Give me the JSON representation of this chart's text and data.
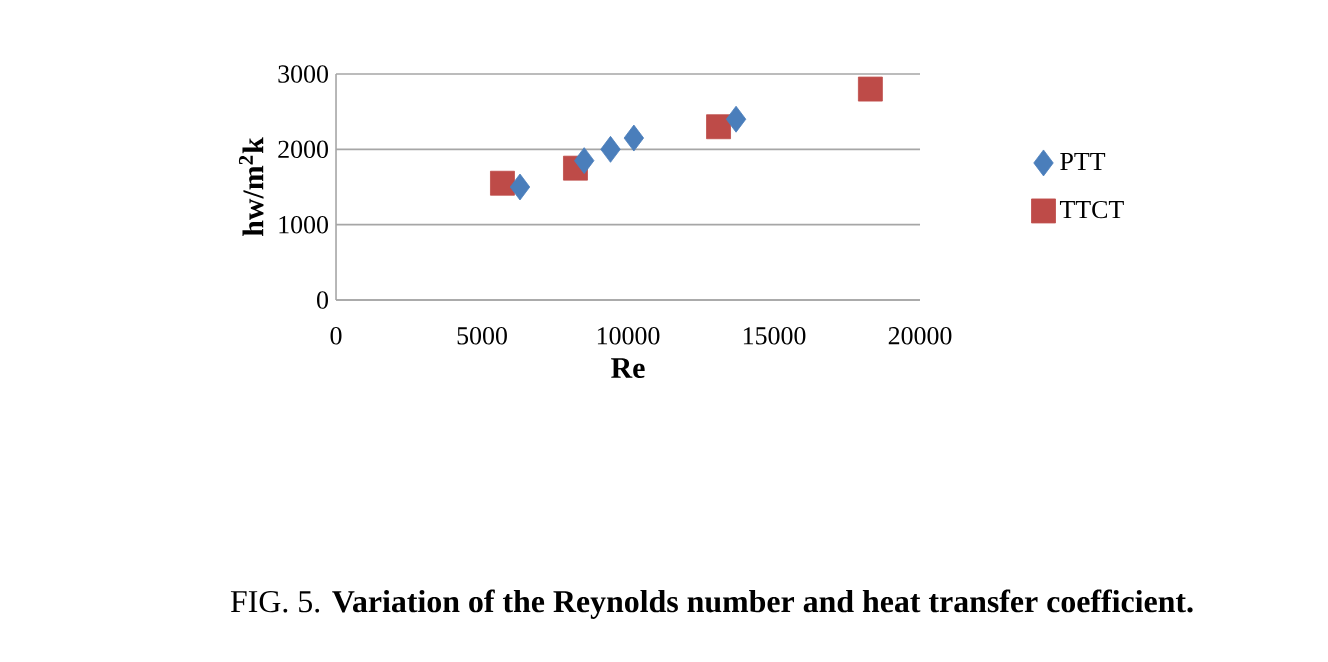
{
  "chart_data": {
    "type": "scatter",
    "title": "FIG. 5. **Variation of the Reynolds number and heat transfer coefficient.**",
    "xlabel": "Re",
    "ylabel": "hw/m$^{2}$k",
    "series": [
      {
        "name": "PTT",
        "color": "#4a7ebb",
        "marker": "diamond",
        "x": [
          6300,
          8500,
          9400,
          10200,
          13700
        ],
        "values": [
          1500,
          1850,
          2000,
          2150,
          2400
        ]
      },
      {
        "name": "TTCT",
        "color": "#be4b48",
        "marker": "square",
        "x": [
          5700,
          8200,
          13100,
          18300
        ],
        "values": [
          1550,
          1750,
          2300,
          2800
        ]
      }
    ],
    "xlim": [
      0,
      20000
    ],
    "xticks": [
      0,
      5000,
      10000,
      15000,
      20000
    ],
    "ylim": [
      0,
      3000
    ],
    "yticks": [
      0,
      1000,
      2000,
      3000
    ],
    "grid": "y",
    "legend": "right"
  }
}
